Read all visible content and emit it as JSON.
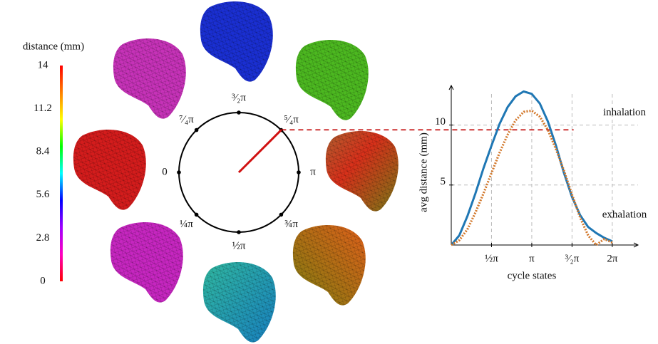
{
  "chart_data": [
    {
      "type": "line",
      "xlabel": "cycle states",
      "ylabel": "avg distance (mm)",
      "x": [
        0,
        0.1,
        0.2,
        0.3,
        0.4,
        0.5,
        0.6,
        0.7,
        0.8,
        0.9,
        1.0,
        1.1,
        1.2,
        1.3,
        1.4,
        1.5,
        1.6,
        1.7,
        1.8,
        1.9,
        2.0
      ],
      "series": [
        {
          "color": "#1f77b4",
          "style": "solid",
          "values": [
            0,
            0.8,
            2.4,
            4.3,
            6.4,
            8.3,
            10.1,
            11.5,
            12.4,
            12.8,
            12.6,
            11.8,
            10.3,
            8.3,
            6.0,
            4.0,
            2.5,
            1.5,
            1.0,
            0.6,
            0.3
          ]
        },
        {
          "color": "#d2772a",
          "style": "dotted",
          "values": [
            0,
            0.4,
            1.3,
            2.7,
            4.3,
            6.0,
            7.7,
            9.2,
            10.4,
            11.1,
            11.2,
            10.7,
            9.6,
            8.0,
            6.2,
            4.2,
            2.3,
            0.8,
            0.0,
            0.5,
            0.2
          ]
        }
      ],
      "xlim": [
        0,
        2.32
      ],
      "ylim": [
        0,
        13.3
      ],
      "xticks": [
        {
          "value": 0.5,
          "label": "½π"
        },
        {
          "value": 1,
          "label": "π"
        },
        {
          "value": 1.5,
          "label": "³⁄₂π"
        },
        {
          "value": 2,
          "label": "2π"
        }
      ],
      "yticks": [
        5,
        10
      ],
      "grid": true,
      "annotations": [
        {
          "text": "inhalation",
          "y": 11.0
        },
        {
          "text": "exhalation",
          "y": 2.5
        }
      ],
      "reference_line": {
        "y": 9.6,
        "x_end": 1.52,
        "color": "#c00000"
      }
    }
  ],
  "colorbar": {
    "title": "distance (mm)",
    "range": [
      0,
      14
    ],
    "ticks": [
      0,
      2.8,
      5.6,
      8.4,
      11.2,
      14
    ],
    "colors": [
      "#ff0000",
      "#ff00c0",
      "#a000ff",
      "#0000ff",
      "#00ffff",
      "#00ff00",
      "#ffff00",
      "#ff8000",
      "#ff0000"
    ]
  },
  "cycle_diagram": {
    "states": [
      {
        "value": 0,
        "label": "0"
      },
      {
        "value": 0.25,
        "label": "¼π"
      },
      {
        "value": 0.5,
        "label": "½π"
      },
      {
        "value": 0.75,
        "label": "¾π"
      },
      {
        "value": 1,
        "label": "π"
      },
      {
        "value": 1.25,
        "label": "⁵⁄₄π"
      },
      {
        "value": 1.5,
        "label": "³⁄₂π"
      },
      {
        "value": 1.75,
        "label": "⁷⁄₄π"
      }
    ],
    "hand": 1.25,
    "hand_color": "#d01010"
  }
}
